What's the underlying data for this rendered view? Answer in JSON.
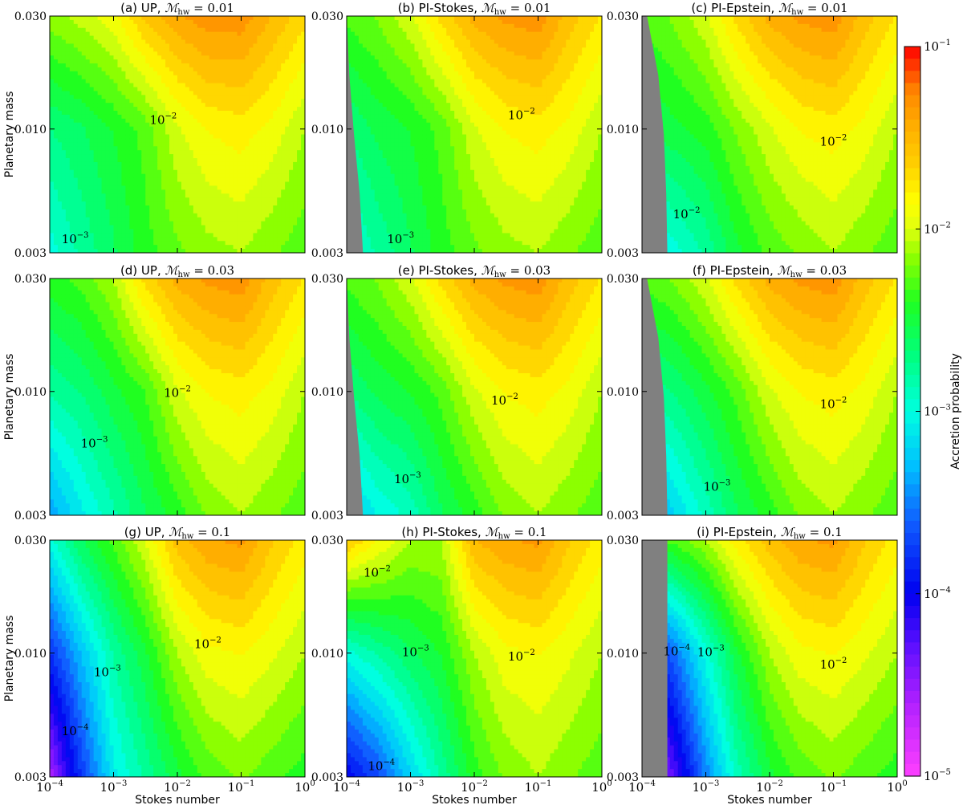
{
  "figure": {
    "colorbar_label": "Accretion probability",
    "colorbar_ticks": [
      {
        "exp": -1,
        "label": "10",
        "sup": "−1"
      },
      {
        "exp": -2,
        "label": "10",
        "sup": "−2"
      },
      {
        "exp": -3,
        "label": "10",
        "sup": "−3"
      },
      {
        "exp": -4,
        "label": "10",
        "sup": "−4"
      },
      {
        "exp": -5,
        "label": "10",
        "sup": "−5"
      }
    ],
    "colormap_stops": [
      {
        "log": -5.0,
        "color": "#ff40ff"
      },
      {
        "log": -4.6,
        "color": "#b020ff"
      },
      {
        "log": -4.3,
        "color": "#6010ff"
      },
      {
        "log": -4.0,
        "color": "#0000f0"
      },
      {
        "log": -3.6,
        "color": "#1060ff"
      },
      {
        "log": -3.3,
        "color": "#00c0ff"
      },
      {
        "log": -3.0,
        "color": "#00ffe0"
      },
      {
        "log": -2.7,
        "color": "#00ff80"
      },
      {
        "log": -2.4,
        "color": "#20ff20"
      },
      {
        "log": -2.15,
        "color": "#90ff00"
      },
      {
        "log": -2.0,
        "color": "#e0ff10"
      },
      {
        "log": -1.85,
        "color": "#ffff00"
      },
      {
        "log": -1.65,
        "color": "#ffd000"
      },
      {
        "log": -1.45,
        "color": "#ffb000"
      },
      {
        "log": -1.25,
        "color": "#ff8800"
      },
      {
        "log": -1.0,
        "color": "#ff0000"
      }
    ],
    "masked_color": "#808080"
  },
  "chart_data": [
    {
      "type": "heatmap",
      "title_prefix": "(a) UP, ",
      "title_mhw": "0.01",
      "xlabel": "",
      "ylabel": "Planetary mass",
      "x": [
        0.0001,
        0.0003,
        0.001,
        0.003,
        0.01,
        0.03,
        0.1,
        0.3,
        1.0
      ],
      "y": [
        0.003,
        0.01,
        0.03
      ],
      "z": [
        [
          -3.0,
          -2.8,
          -2.6,
          -2.4,
          -2.25,
          -2.15,
          -2.1,
          -2.2,
          -2.3
        ],
        [
          -2.7,
          -2.6,
          -2.45,
          -2.3,
          -2.0,
          -1.85,
          -1.8,
          -1.9,
          -2.1
        ],
        [
          -2.15,
          -2.05,
          -1.9,
          -1.6,
          -1.4,
          -1.3,
          -1.3,
          -1.5,
          -1.7
        ]
      ],
      "contours": [
        {
          "label": "10",
          "sup": "−2",
          "x": 0.006,
          "y": 0.0105
        },
        {
          "label": "10",
          "sup": "−3",
          "x": 0.00025,
          "y": 0.0033
        }
      ]
    },
    {
      "type": "heatmap",
      "title_prefix": "(b) PI-Stokes, ",
      "title_mhw": "0.01",
      "xlabel": "",
      "ylabel": "",
      "x": [
        0.0001,
        0.0003,
        0.001,
        0.003,
        0.01,
        0.03,
        0.1,
        0.3,
        1.0
      ],
      "y": [
        0.003,
        0.01,
        0.03
      ],
      "mask_x": [
        0.00018,
        0.00016,
        0.00013,
        0.00011,
        0.0001
      ],
      "z": [
        [
          -3.0,
          -2.8,
          -2.6,
          -2.4,
          -2.25,
          -2.15,
          -2.1,
          -2.2,
          -2.3
        ],
        [
          -2.7,
          -2.55,
          -2.45,
          -2.3,
          -2.0,
          -1.85,
          -1.8,
          -1.9,
          -2.1
        ],
        [
          -2.3,
          -2.2,
          -2.0,
          -1.7,
          -1.45,
          -1.35,
          -1.3,
          -1.55,
          -1.75
        ]
      ],
      "contours": [
        {
          "label": "10",
          "sup": "−2",
          "x": 0.055,
          "y": 0.011
        },
        {
          "label": "10",
          "sup": "−3",
          "x": 0.0007,
          "y": 0.0033
        }
      ]
    },
    {
      "type": "heatmap",
      "title_prefix": "(c) PI-Epstein, ",
      "title_mhw": "0.01",
      "xlabel": "",
      "ylabel": "",
      "x": [
        0.0001,
        0.0003,
        0.001,
        0.003,
        0.01,
        0.03,
        0.1,
        0.3,
        1.0
      ],
      "y": [
        0.003,
        0.01,
        0.03
      ],
      "mask_x": [
        0.00025,
        0.00024,
        0.00022,
        0.00018,
        0.00012
      ],
      "z": [
        [
          -3.2,
          -3.0,
          -2.8,
          -2.5,
          -2.3,
          -2.2,
          -2.1,
          -2.2,
          -2.3
        ],
        [
          -2.6,
          -2.5,
          -2.4,
          -2.2,
          -2.0,
          -1.85,
          -1.8,
          -1.9,
          -2.1
        ],
        [
          -2.3,
          -2.2,
          -2.0,
          -1.7,
          -1.45,
          -1.35,
          -1.3,
          -1.55,
          -1.75
        ]
      ],
      "contours": [
        {
          "label": "10",
          "sup": "−2",
          "x": 0.1,
          "y": 0.0085
        },
        {
          "label": "10",
          "sup": "−2",
          "x": 0.0005,
          "y": 0.0042
        }
      ]
    },
    {
      "type": "heatmap",
      "title_prefix": "(d) UP, ",
      "title_mhw": "0.03",
      "xlabel": "",
      "ylabel": "Planetary mass",
      "x": [
        0.0001,
        0.0003,
        0.001,
        0.003,
        0.01,
        0.03,
        0.1,
        0.3,
        1.0
      ],
      "y": [
        0.003,
        0.01,
        0.03
      ],
      "z": [
        [
          -3.4,
          -3.1,
          -2.85,
          -2.6,
          -2.4,
          -2.2,
          -2.1,
          -2.2,
          -2.3
        ],
        [
          -2.8,
          -2.7,
          -2.5,
          -2.35,
          -2.0,
          -1.85,
          -1.8,
          -1.9,
          -2.1
        ],
        [
          -2.4,
          -2.3,
          -2.1,
          -1.7,
          -1.45,
          -1.35,
          -1.3,
          -1.55,
          -1.75
        ]
      ],
      "contours": [
        {
          "label": "10",
          "sup": "−2",
          "x": 0.01,
          "y": 0.0095
        },
        {
          "label": "10",
          "sup": "−3",
          "x": 0.0005,
          "y": 0.0058
        }
      ]
    },
    {
      "type": "heatmap",
      "title_prefix": "(e) PI-Stokes, ",
      "title_mhw": "0.03",
      "xlabel": "",
      "ylabel": "",
      "x": [
        0.0001,
        0.0003,
        0.001,
        0.003,
        0.01,
        0.03,
        0.1,
        0.3,
        1.0
      ],
      "y": [
        0.003,
        0.01,
        0.03
      ],
      "mask_x": [
        0.00018,
        0.00016,
        0.00013,
        0.00011,
        0.0001
      ],
      "z": [
        [
          -3.3,
          -3.05,
          -2.9,
          -2.6,
          -2.4,
          -2.2,
          -2.1,
          -2.2,
          -2.3
        ],
        [
          -2.7,
          -2.55,
          -2.45,
          -2.3,
          -2.0,
          -1.85,
          -1.8,
          -1.9,
          -2.1
        ],
        [
          -2.3,
          -2.2,
          -2.0,
          -1.7,
          -1.45,
          -1.35,
          -1.3,
          -1.55,
          -1.75
        ]
      ],
      "contours": [
        {
          "label": "10",
          "sup": "−2",
          "x": 0.03,
          "y": 0.0088
        },
        {
          "label": "10",
          "sup": "−3",
          "x": 0.0009,
          "y": 0.0041
        }
      ]
    },
    {
      "type": "heatmap",
      "title_prefix": "(f) PI-Epstein, ",
      "title_mhw": "0.03",
      "xlabel": "",
      "ylabel": "",
      "x": [
        0.0001,
        0.0003,
        0.001,
        0.003,
        0.01,
        0.03,
        0.1,
        0.3,
        1.0
      ],
      "y": [
        0.003,
        0.01,
        0.03
      ],
      "mask_x": [
        0.00025,
        0.00024,
        0.00022,
        0.00018,
        0.00012
      ],
      "z": [
        [
          -3.5,
          -3.2,
          -2.9,
          -2.6,
          -2.4,
          -2.2,
          -2.1,
          -2.2,
          -2.3
        ],
        [
          -2.8,
          -2.7,
          -2.5,
          -2.3,
          -2.0,
          -1.85,
          -1.8,
          -1.9,
          -2.1
        ],
        [
          -2.3,
          -2.2,
          -2.0,
          -1.7,
          -1.45,
          -1.35,
          -1.3,
          -1.55,
          -1.75
        ]
      ],
      "contours": [
        {
          "label": "10",
          "sup": "−2",
          "x": 0.1,
          "y": 0.0085
        },
        {
          "label": "10",
          "sup": "−3",
          "x": 0.0015,
          "y": 0.0038
        }
      ]
    },
    {
      "type": "heatmap",
      "title_prefix": "(g) UP, ",
      "title_mhw": "0.1",
      "xlabel": "Stokes number",
      "ylabel": "Planetary mass",
      "x": [
        0.0001,
        0.0003,
        0.001,
        0.003,
        0.01,
        0.03,
        0.1,
        0.3,
        1.0
      ],
      "y": [
        0.003,
        0.01,
        0.03
      ],
      "z": [
        [
          -4.6,
          -3.8,
          -3.1,
          -2.8,
          -2.5,
          -2.3,
          -2.2,
          -2.3,
          -2.4
        ],
        [
          -3.8,
          -3.3,
          -2.8,
          -2.5,
          -2.1,
          -1.9,
          -1.85,
          -1.95,
          -2.1
        ],
        [
          -3.0,
          -2.6,
          -2.3,
          -2.0,
          -1.55,
          -1.4,
          -1.35,
          -1.6,
          -1.8
        ]
      ],
      "contours": [
        {
          "label": "10",
          "sup": "−2",
          "x": 0.03,
          "y": 0.0105
        },
        {
          "label": "10",
          "sup": "−3",
          "x": 0.0008,
          "y": 0.008
        },
        {
          "label": "10",
          "sup": "−4",
          "x": 0.00025,
          "y": 0.0045
        }
      ]
    },
    {
      "type": "heatmap",
      "title_prefix": "(h) PI-Stokes, ",
      "title_mhw": "0.1",
      "xlabel": "Stokes number",
      "ylabel": "",
      "x": [
        0.0001,
        0.0003,
        0.001,
        0.003,
        0.01,
        0.03,
        0.1,
        0.3,
        1.0
      ],
      "y": [
        0.003,
        0.01,
        0.03
      ],
      "z": [
        [
          -4.0,
          -3.7,
          -3.2,
          -2.8,
          -2.4,
          -2.2,
          -2.1,
          -2.2,
          -2.3
        ],
        [
          -3.0,
          -2.8,
          -2.6,
          -2.45,
          -2.1,
          -1.9,
          -1.85,
          -1.95,
          -2.1
        ],
        [
          -1.6,
          -1.85,
          -2.1,
          -2.1,
          -1.5,
          -1.4,
          -1.35,
          -1.6,
          -1.8
        ]
      ],
      "contours": [
        {
          "label": "10",
          "sup": "−2",
          "x": 0.055,
          "y": 0.0093
        },
        {
          "label": "10",
          "sup": "−3",
          "x": 0.0012,
          "y": 0.0097
        },
        {
          "label": "10",
          "sup": "−2",
          "x": 0.0003,
          "y": 0.021
        },
        {
          "label": "10",
          "sup": "−4",
          "x": 0.00035,
          "y": 0.0032
        }
      ]
    },
    {
      "type": "heatmap",
      "title_prefix": "(i) PI-Epstein, ",
      "title_mhw": "0.1",
      "xlabel": "Stokes number",
      "ylabel": "",
      "x": [
        0.0001,
        0.0003,
        0.001,
        0.003,
        0.01,
        0.03,
        0.1,
        0.3,
        1.0
      ],
      "y": [
        0.003,
        0.01,
        0.03
      ],
      "mask_x": [
        0.00025,
        0.00025,
        0.00025,
        0.00025,
        0.00025
      ],
      "z": [
        [
          -4.8,
          -4.3,
          -3.5,
          -2.9,
          -2.5,
          -2.3,
          -2.2,
          -2.3,
          -2.4
        ],
        [
          -3.9,
          -3.6,
          -3.0,
          -2.5,
          -2.1,
          -1.9,
          -1.85,
          -1.95,
          -2.1
        ],
        [
          -2.4,
          -2.3,
          -2.1,
          -1.8,
          -1.55,
          -1.4,
          -1.35,
          -1.6,
          -1.8
        ]
      ],
      "contours": [
        {
          "label": "10",
          "sup": "−2",
          "x": 0.1,
          "y": 0.0086
        },
        {
          "label": "10",
          "sup": "−3",
          "x": 0.0012,
          "y": 0.0097
        },
        {
          "label": "10",
          "sup": "−4",
          "x": 0.00035,
          "y": 0.0098
        }
      ]
    }
  ],
  "axes": {
    "x_ticks": [
      {
        "label": "10",
        "sup": "−4",
        "v": 0.0001
      },
      {
        "label": "10",
        "sup": "−3",
        "v": 0.001
      },
      {
        "label": "10",
        "sup": "−2",
        "v": 0.01
      },
      {
        "label": "10",
        "sup": "−1",
        "v": 0.1
      },
      {
        "label": "10",
        "sup": "0",
        "v": 1.0
      }
    ],
    "y_ticks": [
      {
        "label": "0.003",
        "v": 0.003
      },
      {
        "label": "0.010",
        "v": 0.01
      },
      {
        "label": "0.030",
        "v": 0.03
      }
    ],
    "x_range": [
      0.0001,
      1.0
    ],
    "y_range": [
      0.003,
      0.03
    ]
  }
}
